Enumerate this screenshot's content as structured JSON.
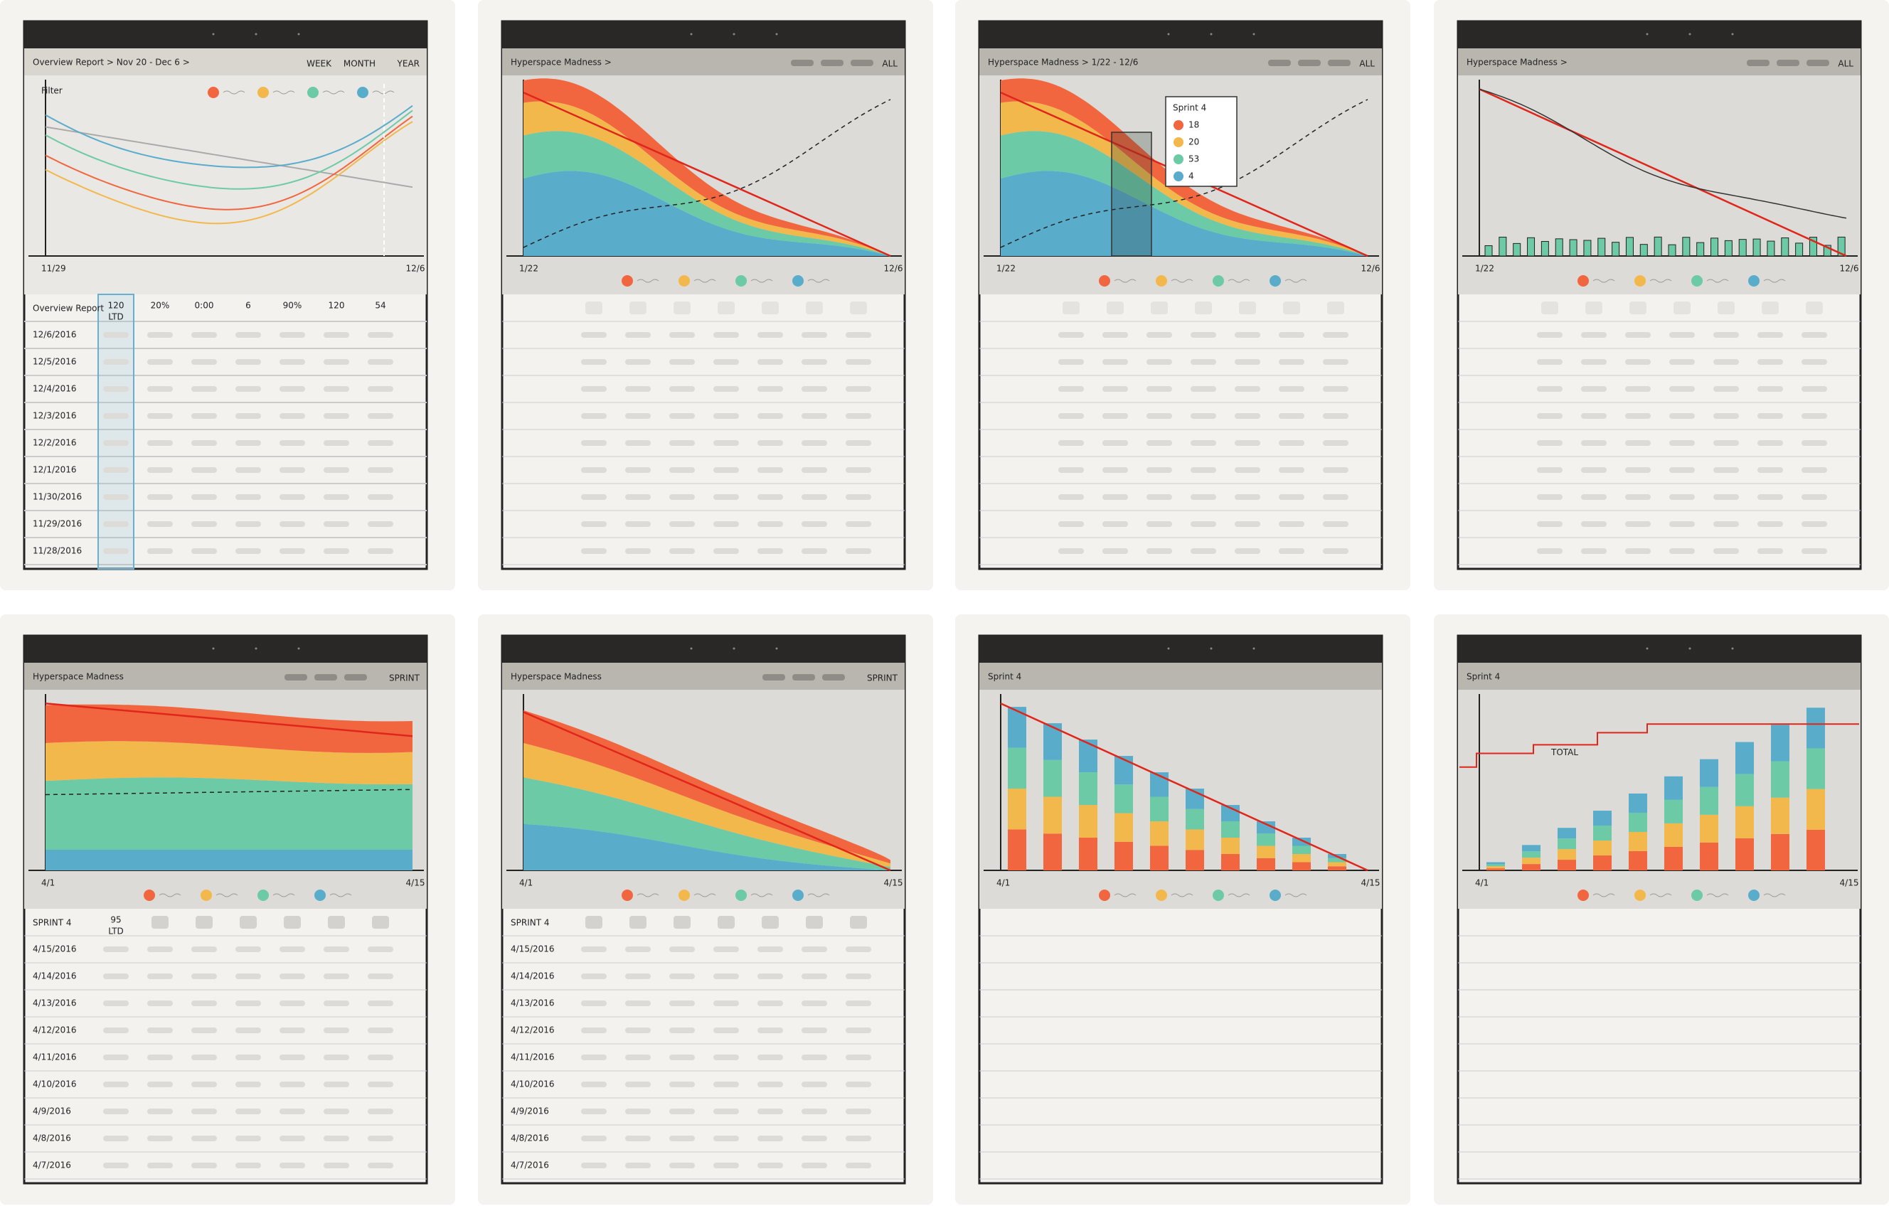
{
  "panels": [
    {
      "breadcrumb": "Overview Report > Nov 20 - Dec 6 >",
      "tabs": [
        "WEEK",
        "MONTH",
        "YEAR"
      ],
      "filter": "Filter",
      "axis": [
        "11/29",
        "12/6"
      ],
      "table": {
        "title": "Overview Report",
        "cells": [
          "120",
          "20%",
          "0:00",
          "6",
          "90%",
          "120",
          "54"
        ],
        "ltd_label": "LTD",
        "rows": [
          "12/6/2016",
          "12/5/2016",
          "12/4/2016",
          "12/3/2016",
          "12/2/2016",
          "12/1/2016",
          "11/30/2016",
          "11/29/2016",
          "11/28/2016"
        ]
      }
    },
    {
      "breadcrumb": "Hyperspace Madness >",
      "tabs": [
        "ALL"
      ],
      "axis": [
        "1/22",
        "12/6"
      ]
    },
    {
      "breadcrumb": "Hyperspace Madness > 1/22 - 12/6",
      "tabs": [
        "ALL"
      ],
      "axis": [
        "1/22",
        "12/6"
      ],
      "tooltip": {
        "title": "Sprint 4",
        "values": [
          "18",
          "20",
          "53",
          "4"
        ]
      }
    },
    {
      "breadcrumb": "Hyperspace Madness >",
      "tabs": [
        "ALL"
      ],
      "axis": [
        "1/22",
        "12/6"
      ]
    },
    {
      "breadcrumb": "Hyperspace Madness",
      "tabs": [
        "SPRINT"
      ],
      "axis": [
        "4/1",
        "4/15"
      ],
      "table": {
        "title": "SPRINT 4",
        "cells": [
          "95"
        ],
        "ltd_label": "LTD",
        "rows": [
          "4/15/2016",
          "4/14/2016",
          "4/13/2016",
          "4/12/2016",
          "4/11/2016",
          "4/10/2016",
          "4/9/2016",
          "4/8/2016",
          "4/7/2016"
        ]
      }
    },
    {
      "breadcrumb": "Hyperspace Madness",
      "tabs": [
        "SPRINT"
      ],
      "axis": [
        "4/1",
        "4/15"
      ],
      "table": {
        "title": "SPRINT 4",
        "rows": [
          "4/15/2016",
          "4/14/2016",
          "4/13/2016",
          "4/12/2016",
          "4/11/2016",
          "4/10/2016",
          "4/9/2016",
          "4/8/2016",
          "4/7/2016"
        ]
      }
    },
    {
      "breadcrumb": "Sprint 4",
      "axis": [
        "4/1",
        "4/15"
      ]
    },
    {
      "breadcrumb": "Sprint 4",
      "axis": [
        "4/1",
        "4/15"
      ],
      "total_label": "TOTAL"
    }
  ]
}
